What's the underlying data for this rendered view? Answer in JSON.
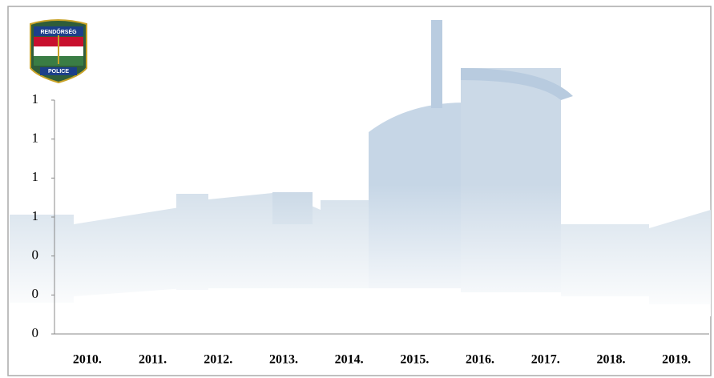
{
  "logo": {
    "top": "RENDŐRSÉG",
    "bottom": "POLICE"
  },
  "chart_data": {
    "type": "bar",
    "categories": [
      "2010.",
      "2011.",
      "2012.",
      "2013.",
      "2014.",
      "2015.",
      "2016.",
      "2017.",
      "2018.",
      "2019."
    ],
    "ylim": [
      0,
      1.2
    ],
    "yticks": [
      0,
      {
        "value": 0.2,
        "label": "0"
      },
      {
        "value": 0.4,
        "label": "0"
      },
      {
        "value": 0.6,
        "label": "1"
      },
      {
        "value": 0.8,
        "label": "1"
      },
      1,
      {
        "value": 1.2,
        "label": "1"
      }
    ]
  }
}
